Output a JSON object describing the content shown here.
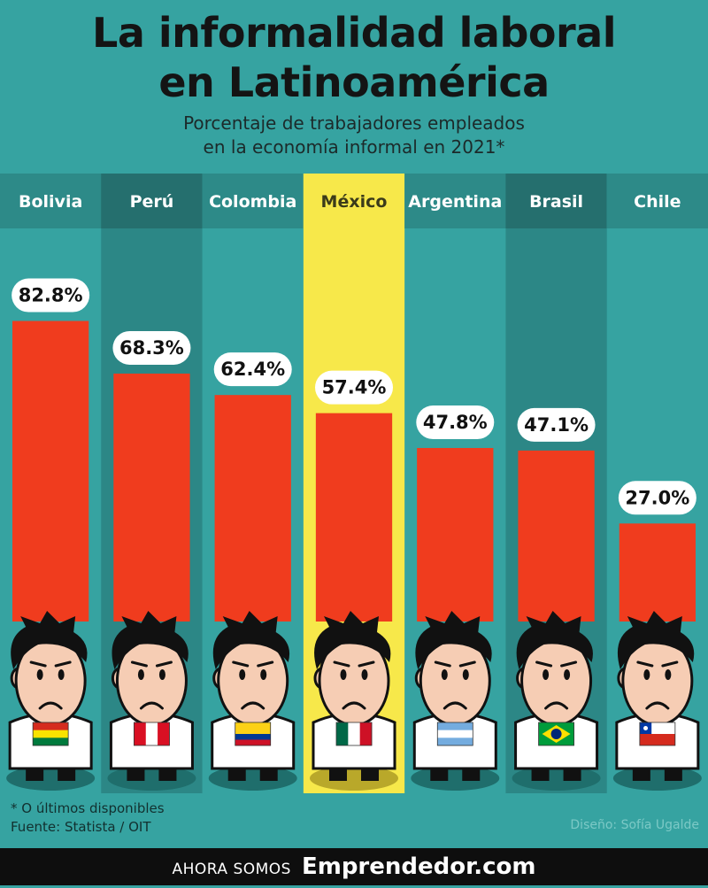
{
  "header": {
    "title_line1": "La informalidad laboral",
    "title_line2": "en Latinoamérica",
    "subtitle_line1": "Porcentaje de trabajadores empleados",
    "subtitle_line2": "en la economía informal en 2021*"
  },
  "chart_data": {
    "type": "bar",
    "title": "La informalidad laboral en Latinoamérica",
    "subtitle": "Porcentaje de trabajadores empleados en la economía informal en 2021*",
    "categories": [
      "Bolivia",
      "Perú",
      "Colombia",
      "México",
      "Argentina",
      "Brasil",
      "Chile"
    ],
    "values": [
      82.8,
      68.3,
      62.4,
      57.4,
      47.8,
      47.1,
      27.0
    ],
    "value_labels": [
      "82.8%",
      "68.3%",
      "62.4%",
      "57.4%",
      "47.8%",
      "47.1%",
      "27.0%"
    ],
    "highlight": "México",
    "ylim": [
      0,
      100
    ],
    "grid": false,
    "colors": {
      "bar": "#f03c1e",
      "column_light": "#36a3a1",
      "column_dark": "#2c8786",
      "highlight": "#f7e84a",
      "header_light": "#2d8a88",
      "header_dark": "#256f6e"
    }
  },
  "footer": {
    "note": "* O últimos disponibles",
    "source": "Fuente: Statista / OIT",
    "credit": "Diseño: Sofía Ugalde"
  },
  "banner": {
    "prefix": "AHORA SOMOS",
    "brand": "Emprendedor.com"
  }
}
